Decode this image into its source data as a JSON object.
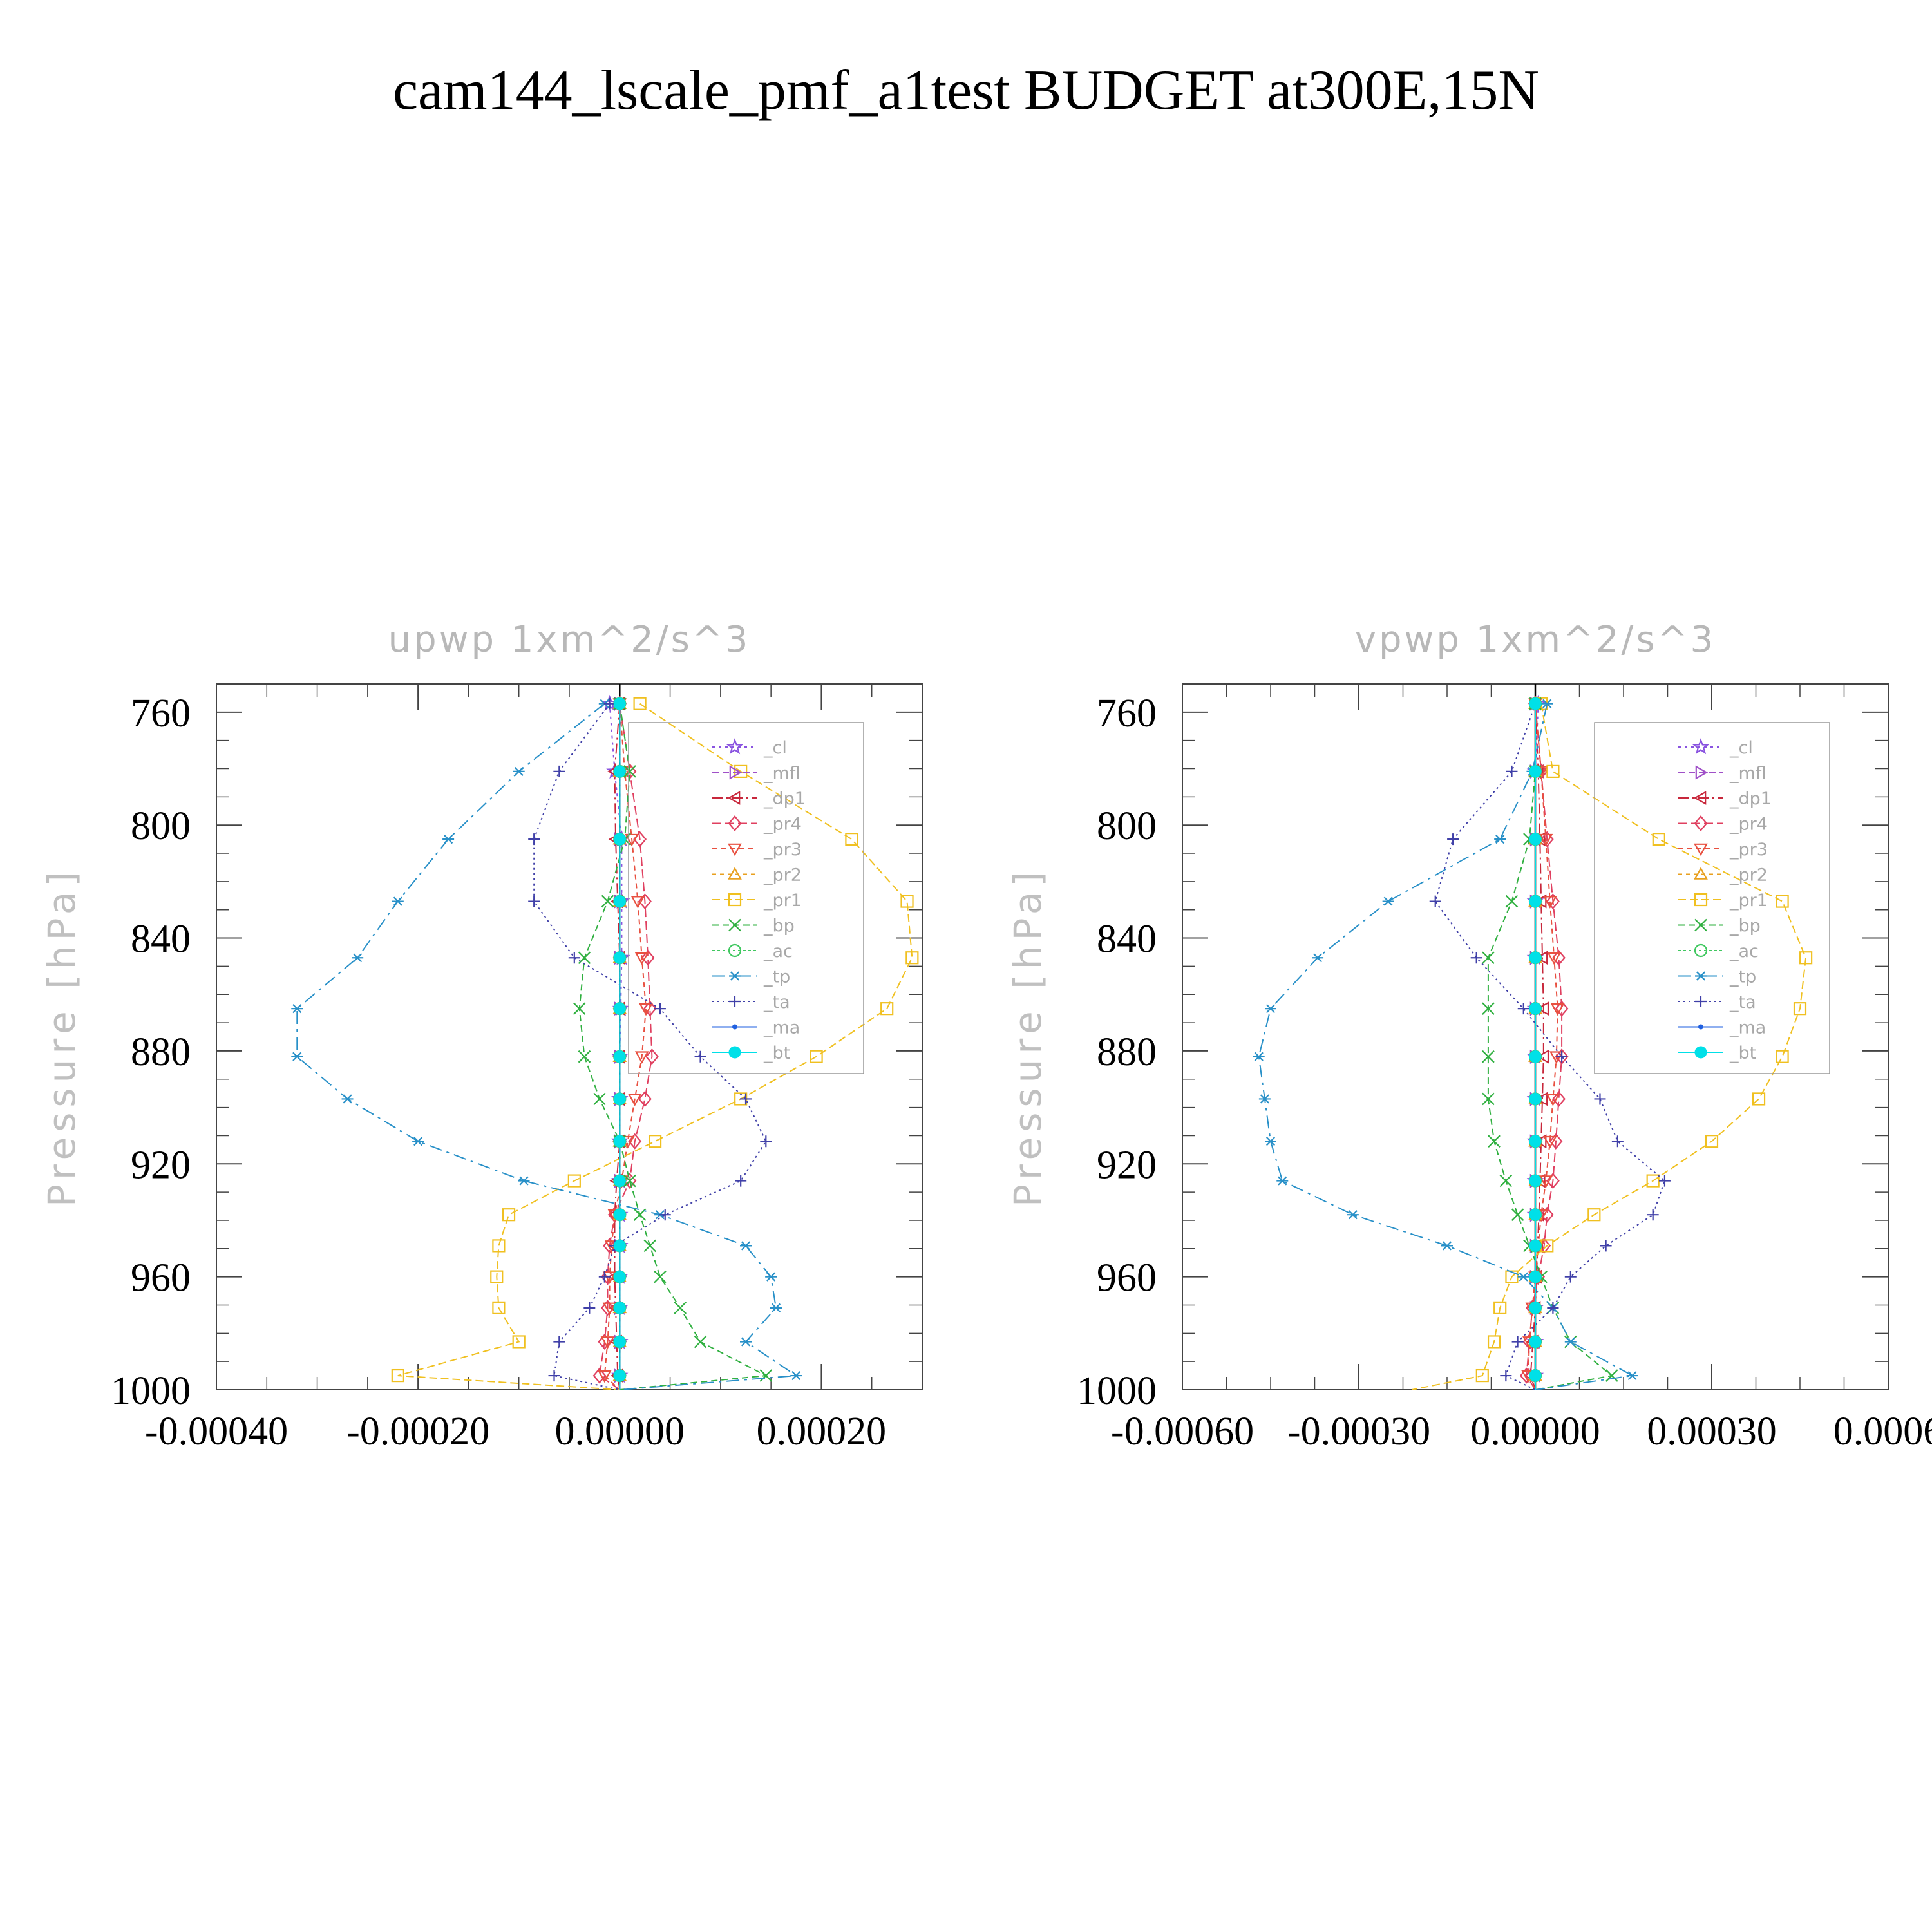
{
  "title": "cam144_lscale_pmf_a1test  BUDGET at300E,15N",
  "ylabel": "Pressure  [hPa]",
  "levels": [
    757,
    781,
    805,
    827,
    847,
    865,
    882,
    897,
    912,
    926,
    938,
    949,
    960,
    971,
    983,
    995,
    1000
  ],
  "legend": [
    {
      "name": "_cl",
      "color": "#8a54e0",
      "marker": "star",
      "dash": "4 6"
    },
    {
      "name": "_mfl",
      "color": "#a050c8",
      "marker": "tri-right",
      "dash": "10 6"
    },
    {
      "name": "_dp1",
      "color": "#c8283c",
      "marker": "tri-left",
      "dash": "16 6 3 6"
    },
    {
      "name": "_pr4",
      "color": "#e04060",
      "marker": "diamond",
      "dash": "14 6"
    },
    {
      "name": "_pr3",
      "color": "#e85040",
      "marker": "tri-down",
      "dash": "8 6"
    },
    {
      "name": "_pr2",
      "color": "#e8a020",
      "marker": "tri-up",
      "dash": "6 6"
    },
    {
      "name": "_pr1",
      "color": "#f0c020",
      "marker": "square",
      "dash": "12 6"
    },
    {
      "name": "_bp",
      "color": "#30b040",
      "marker": "cross",
      "dash": "10 6"
    },
    {
      "name": "_ac",
      "color": "#40c860",
      "marker": "circle",
      "dash": "4 4"
    },
    {
      "name": "_tp",
      "color": "#2890c8",
      "marker": "asterisk",
      "dash": "20 8 4 8"
    },
    {
      "name": "_ta",
      "color": "#4040a8",
      "marker": "plus",
      "dash": "3 5"
    },
    {
      "name": "_ma",
      "color": "#2060e0",
      "marker": "dot",
      "dash": ""
    },
    {
      "name": "_bt",
      "color": "#00e0e8",
      "marker": "bigdot",
      "dash": ""
    }
  ],
  "chart_data": [
    {
      "type": "line",
      "title": "upwp   1xm^2/s^3",
      "ylabel": "Pressure  [hPa]",
      "xlim": [
        -0.0004,
        0.0003
      ],
      "ylim": [
        1000,
        750
      ],
      "xticks": [
        "-0.00040",
        "-0.00020",
        "0.00000",
        "0.00020"
      ],
      "xtick_values": [
        -0.0004,
        -0.0002,
        0.0,
        0.0002
      ],
      "yticks": [
        760,
        800,
        840,
        880,
        920,
        960,
        1000
      ],
      "series": [
        {
          "name": "_cl",
          "values": [
            -1e-05,
            -5e-06,
            2e-06,
            2e-06,
            2e-06,
            1e-06,
            0.0,
            0.0,
            0.0,
            0.0,
            0.0,
            0.0,
            0.0,
            0.0,
            0.0,
            0.0,
            0.0
          ]
        },
        {
          "name": "_mfl",
          "values": [
            0.0,
            0.0,
            0.0,
            0.0,
            0.0,
            0.0,
            0.0,
            0.0,
            0.0,
            0.0,
            0.0,
            0.0,
            0.0,
            0.0,
            0.0,
            0.0,
            0.0
          ]
        },
        {
          "name": "_dp1",
          "values": [
            0.0,
            -5e-06,
            -4e-06,
            -2e-06,
            0.0,
            0.0,
            0.0,
            0.0,
            0.0,
            -3e-06,
            -5e-06,
            -5e-06,
            -5e-06,
            -4e-06,
            -3e-06,
            -2e-06,
            0.0
          ]
        },
        {
          "name": "_pr4",
          "values": [
            0.0,
            1e-05,
            2e-05,
            2.5e-05,
            2.8e-05,
            3e-05,
            3.2e-05,
            2.5e-05,
            1.5e-05,
            1e-05,
            -5e-06,
            -1e-05,
            -1.2e-05,
            -1.2e-05,
            -1.5e-05,
            -2e-05,
            0.0
          ]
        },
        {
          "name": "_pr3",
          "values": [
            0.0,
            5e-06,
            1.2e-05,
            1.8e-05,
            2.2e-05,
            2.6e-05,
            2.2e-05,
            1.5e-05,
            8e-06,
            2e-06,
            -5e-06,
            -8e-06,
            -1e-05,
            -1e-05,
            -1.2e-05,
            -1.5e-05,
            0.0
          ]
        },
        {
          "name": "_pr2",
          "values": [
            0.0,
            0.0,
            0.0,
            0.0,
            0.0,
            0.0,
            0.0,
            0.0,
            0.0,
            0.0,
            0.0,
            0.0,
            0.0,
            0.0,
            0.0,
            0.0,
            0.0
          ]
        },
        {
          "name": "_pr1",
          "values": [
            2e-05,
            0.00012,
            0.00023,
            0.000285,
            0.00029,
            0.000265,
            0.000195,
            0.00012,
            3.5e-05,
            -4.5e-05,
            -0.00011,
            -0.00012,
            -0.000122,
            -0.00012,
            -0.0001,
            -0.00022,
            0.0
          ]
        },
        {
          "name": "_bp",
          "values": [
            0.0,
            1e-05,
            5e-06,
            -1.2e-05,
            -3.5e-05,
            -4e-05,
            -3.5e-05,
            -2e-05,
            0.0,
            1e-05,
            2e-05,
            3e-05,
            4e-05,
            6e-05,
            8e-05,
            0.000145,
            0.0
          ]
        },
        {
          "name": "_ac",
          "values": [
            0.0,
            0.0,
            0.0,
            0.0,
            0.0,
            0.0,
            0.0,
            0.0,
            0.0,
            0.0,
            0.0,
            0.0,
            0.0,
            0.0,
            0.0,
            0.0,
            0.0
          ]
        },
        {
          "name": "_tp",
          "values": [
            -1.5e-05,
            -0.0001,
            -0.00017,
            -0.00022,
            -0.00026,
            -0.00032,
            -0.00032,
            -0.00027,
            -0.0002,
            -9.5e-05,
            4e-05,
            0.000125,
            0.00015,
            0.000155,
            0.000125,
            0.000175,
            0.0
          ]
        },
        {
          "name": "_ta",
          "values": [
            -1e-05,
            -6e-05,
            -8.5e-05,
            -8.5e-05,
            -4.5e-05,
            4e-05,
            8e-05,
            0.000125,
            0.000145,
            0.00012,
            4.5e-05,
            -5e-06,
            -1.5e-05,
            -3e-05,
            -6e-05,
            -6.5e-05,
            0.0
          ]
        },
        {
          "name": "_ma",
          "values": [
            0.0,
            0.0,
            0.0,
            0.0,
            0.0,
            0.0,
            0.0,
            0.0,
            0.0,
            0.0,
            0.0,
            0.0,
            0.0,
            0.0,
            0.0,
            0.0,
            0.0
          ]
        },
        {
          "name": "_bt",
          "values": [
            0.0,
            0.0,
            0.0,
            0.0,
            0.0,
            0.0,
            0.0,
            0.0,
            0.0,
            0.0,
            0.0,
            0.0,
            0.0,
            0.0,
            0.0,
            0.0,
            0.0
          ]
        }
      ],
      "legend_position": "top-right",
      "grid": false
    },
    {
      "type": "line",
      "title": "vpwp   1xm^2/s^3",
      "ylabel": "Pressure  [hPa]",
      "xlim": [
        -0.0006,
        0.0006
      ],
      "ylim": [
        1000,
        750
      ],
      "xticks": [
        "-0.00060",
        "-0.00030",
        "0.00000",
        "0.00030",
        "0.0006"
      ],
      "xtick_values": [
        -0.0006,
        -0.0003,
        0.0,
        0.0003,
        0.0006
      ],
      "yticks": [
        760,
        800,
        840,
        880,
        920,
        960,
        1000
      ],
      "series": [
        {
          "name": "_cl",
          "values": [
            5e-06,
            0.0,
            0.0,
            0.0,
            0.0,
            0.0,
            0.0,
            0.0,
            0.0,
            0.0,
            0.0,
            0.0,
            0.0,
            0.0,
            0.0,
            0.0,
            0.0
          ]
        },
        {
          "name": "_mfl",
          "values": [
            0.0,
            0.0,
            0.0,
            0.0,
            0.0,
            0.0,
            0.0,
            0.0,
            0.0,
            0.0,
            0.0,
            0.0,
            0.0,
            0.0,
            0.0,
            0.0,
            0.0
          ]
        },
        {
          "name": "_dp1",
          "values": [
            0.0,
            5e-06,
            8e-06,
            1e-05,
            1.2e-05,
            1.4e-05,
            1.4e-05,
            1.2e-05,
            1e-05,
            8e-06,
            6e-06,
            4e-06,
            2e-06,
            0.0,
            -4e-06,
            -8e-06,
            0.0
          ]
        },
        {
          "name": "_pr4",
          "values": [
            0.0,
            1e-05,
            2e-05,
            3e-05,
            4e-05,
            4.5e-05,
            4.5e-05,
            4e-05,
            3.5e-05,
            3e-05,
            2e-05,
            1.5e-05,
            5e-06,
            -5e-06,
            -1e-05,
            -1.5e-05,
            0.0
          ]
        },
        {
          "name": "_pr3",
          "values": [
            0.0,
            1e-05,
            1.8e-05,
            2.5e-05,
            3.2e-05,
            3.8e-05,
            3.6e-05,
            3e-05,
            2.5e-05,
            1.8e-05,
            1e-05,
            5e-06,
            0.0,
            -5e-06,
            -1e-05,
            -1.2e-05,
            0.0
          ]
        },
        {
          "name": "_pr2",
          "values": [
            0.0,
            0.0,
            0.0,
            0.0,
            0.0,
            0.0,
            0.0,
            0.0,
            0.0,
            0.0,
            0.0,
            0.0,
            0.0,
            0.0,
            0.0,
            0.0,
            0.0
          ]
        },
        {
          "name": "_pr1",
          "values": [
            1e-05,
            3e-05,
            0.00021,
            0.00042,
            0.00046,
            0.00045,
            0.00042,
            0.00038,
            0.0003,
            0.0002,
            0.0001,
            2e-05,
            -4e-05,
            -6e-05,
            -7e-05,
            -9e-05,
            -0.00021
          ]
        },
        {
          "name": "_bp",
          "values": [
            0.0,
            0.0,
            -1e-05,
            -4e-05,
            -8e-05,
            -8e-05,
            -8e-05,
            -8e-05,
            -7e-05,
            -5e-05,
            -3e-05,
            -1e-05,
            1e-05,
            3e-05,
            6e-05,
            0.00013,
            0.0
          ]
        },
        {
          "name": "_ac",
          "values": [
            0.0,
            0.0,
            0.0,
            0.0,
            0.0,
            0.0,
            0.0,
            0.0,
            0.0,
            0.0,
            0.0,
            0.0,
            0.0,
            0.0,
            0.0,
            0.0,
            0.0
          ]
        },
        {
          "name": "_tp",
          "values": [
            2e-05,
            -5e-06,
            -6e-05,
            -0.00025,
            -0.00037,
            -0.00045,
            -0.00047,
            -0.00046,
            -0.00045,
            -0.00043,
            -0.00031,
            -0.00015,
            -2e-05,
            3e-05,
            6e-05,
            0.000165,
            0.0
          ]
        },
        {
          "name": "_ta",
          "values": [
            0.0,
            -4e-05,
            -0.00014,
            -0.00017,
            -0.0001,
            -2e-05,
            4.5e-05,
            0.00011,
            0.00014,
            0.00022,
            0.0002,
            0.00012,
            6e-05,
            3e-05,
            -3e-05,
            -5e-05,
            0.0
          ]
        },
        {
          "name": "_ma",
          "values": [
            0.0,
            0.0,
            0.0,
            0.0,
            0.0,
            0.0,
            0.0,
            0.0,
            0.0,
            0.0,
            0.0,
            0.0,
            0.0,
            0.0,
            0.0,
            0.0,
            0.0
          ]
        },
        {
          "name": "_bt",
          "values": [
            0.0,
            0.0,
            0.0,
            0.0,
            0.0,
            0.0,
            0.0,
            0.0,
            0.0,
            0.0,
            0.0,
            0.0,
            0.0,
            0.0,
            0.0,
            0.0,
            0.0
          ]
        }
      ],
      "legend_position": "top-right",
      "grid": false
    }
  ]
}
